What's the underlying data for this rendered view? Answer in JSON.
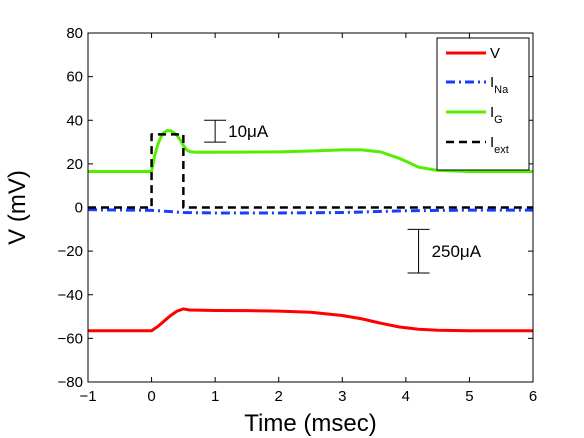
{
  "chart_data": {
    "type": "line",
    "xlabel": "Time (msec)",
    "ylabel": "V (mV)",
    "xlim": [
      -1,
      6
    ],
    "ylim": [
      -80,
      80
    ],
    "xticks": [
      -1,
      0,
      1,
      2,
      3,
      4,
      5,
      6
    ],
    "yticks": [
      -80,
      -60,
      -40,
      -20,
      0,
      20,
      40,
      60,
      80
    ],
    "grid": false,
    "legend_position": "top-right",
    "series": [
      {
        "name": "V",
        "legend_main": "V",
        "legend_sub": "",
        "color": "#ff0000",
        "style": "solid",
        "x": [
          -1,
          0,
          0.1,
          0.2,
          0.3,
          0.4,
          0.5,
          0.6,
          1,
          1.5,
          2,
          2.5,
          3,
          3.3,
          3.6,
          3.9,
          4.2,
          4.5,
          5,
          5.5,
          6
        ],
        "y": [
          -56.5,
          -56.5,
          -54.5,
          -52,
          -49.5,
          -47.5,
          -46.5,
          -47,
          -47.2,
          -47.3,
          -47.5,
          -48,
          -49.5,
          -51,
          -53,
          -54.8,
          -55.8,
          -56.3,
          -56.5,
          -56.5,
          -56.5
        ]
      },
      {
        "name": "I_Na",
        "legend_main": "I",
        "legend_sub": "Na",
        "color": "#1a3cff",
        "style": "dashdot",
        "x": [
          -1,
          0,
          0.5,
          1,
          2,
          3,
          4,
          5,
          6
        ],
        "y": [
          -1,
          -1.3,
          -2.3,
          -2.5,
          -2.5,
          -2.3,
          -1.5,
          -1.2,
          -1.2
        ]
      },
      {
        "name": "I_G",
        "legend_main": "I",
        "legend_sub": "G",
        "color": "#55ee00",
        "style": "solid",
        "x": [
          -1,
          0,
          0.05,
          0.1,
          0.15,
          0.2,
          0.25,
          0.3,
          0.35,
          0.4,
          0.45,
          0.5,
          0.55,
          0.6,
          0.7,
          0.8,
          1,
          1.5,
          2,
          2.5,
          3,
          3.3,
          3.6,
          3.9,
          4.2,
          4.5,
          5,
          5.5,
          6
        ],
        "y": [
          16.5,
          16.5,
          24,
          29,
          32.5,
          34.5,
          35.3,
          35.2,
          34.3,
          33,
          31,
          28.5,
          26.5,
          25.6,
          25.3,
          25.3,
          25.3,
          25.4,
          25.5,
          25.9,
          26.4,
          26.4,
          25.5,
          22.5,
          18.5,
          17,
          16.5,
          16.5,
          16.5
        ]
      },
      {
        "name": "I_ext",
        "legend_main": "I",
        "legend_sub": "ext",
        "color": "#000000",
        "style": "dashed",
        "x": [
          -1,
          0,
          0,
          0.5,
          0.5,
          6
        ],
        "y": [
          0,
          0,
          33.5,
          33.5,
          0,
          0
        ]
      }
    ],
    "scale_bars": [
      {
        "label": "10μA",
        "x": 1,
        "y_low": 30,
        "y_high": 40
      },
      {
        "label": "250μA",
        "x": 4.2,
        "y_low": -30,
        "y_high": -10
      }
    ]
  }
}
